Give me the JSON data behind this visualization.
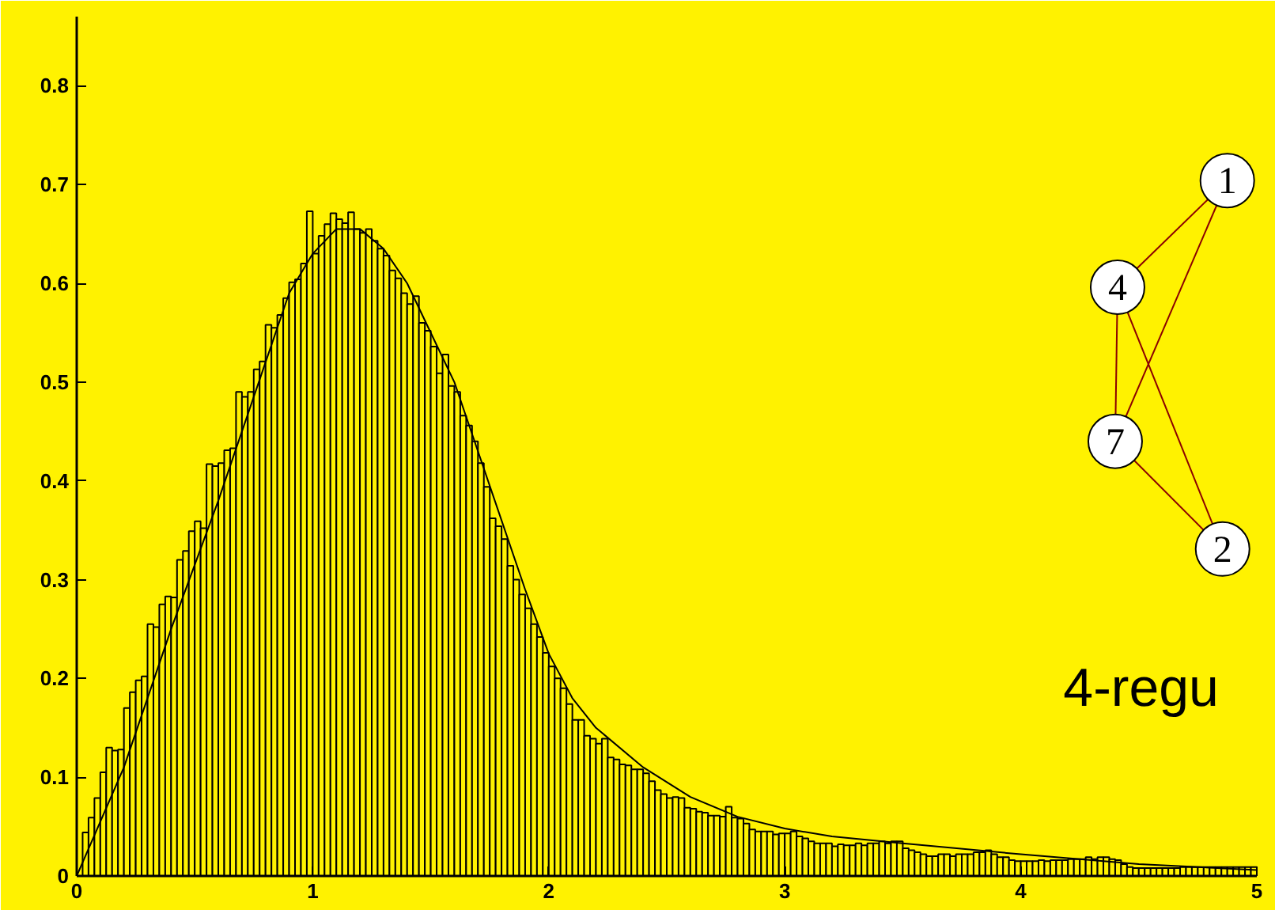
{
  "chart_data": {
    "type": "histogram",
    "bins": [
      0,
      0.025,
      0.05,
      0.075,
      0.1,
      0.125,
      0.15,
      0.175,
      0.2,
      0.225,
      0.25,
      0.275,
      0.3,
      0.325,
      0.35,
      0.375,
      0.4,
      0.425,
      0.45,
      0.475,
      0.5,
      0.525,
      0.55,
      0.575,
      0.6,
      0.625,
      0.65,
      0.675,
      0.7,
      0.725,
      0.75,
      0.775,
      0.8,
      0.825,
      0.85,
      0.875,
      0.9,
      0.925,
      0.95,
      0.975,
      1,
      1.025,
      1.05,
      1.075,
      1.1,
      1.125,
      1.15,
      1.175,
      1.2,
      1.225,
      1.25,
      1.275,
      1.3,
      1.325,
      1.35,
      1.375,
      1.4,
      1.425,
      1.45,
      1.475,
      1.5,
      1.525,
      1.55,
      1.575,
      1.6,
      1.625,
      1.65,
      1.675,
      1.7,
      1.725,
      1.75,
      1.775,
      1.8,
      1.825,
      1.85,
      1.875,
      1.9,
      1.925,
      1.95,
      1.975,
      2,
      2.025,
      2.05,
      2.075,
      2.1,
      2.125,
      2.15,
      2.175,
      2.2,
      2.225,
      2.25,
      2.275,
      2.3,
      2.325,
      2.35,
      2.375,
      2.4,
      2.425,
      2.45,
      2.475,
      2.5,
      2.525,
      2.55,
      2.575,
      2.6,
      2.625,
      2.65,
      2.675,
      2.7,
      2.725,
      2.75,
      2.775,
      2.8,
      2.825,
      2.85,
      2.875,
      2.9,
      2.925,
      2.95,
      2.975,
      3,
      3.025,
      3.05,
      3.075,
      3.1,
      3.125,
      3.15,
      3.175,
      3.2,
      3.225,
      3.25,
      3.275,
      3.3,
      3.325,
      3.35,
      3.375,
      3.4,
      3.425,
      3.45,
      3.475,
      3.5,
      3.525,
      3.55,
      3.575,
      3.6,
      3.625,
      3.65,
      3.675,
      3.7,
      3.725,
      3.75,
      3.775,
      3.8,
      3.825,
      3.85,
      3.875,
      3.9,
      3.925,
      3.95,
      3.975,
      4,
      4.025,
      4.05,
      4.075,
      4.1,
      4.125,
      4.15,
      4.175,
      4.2,
      4.225,
      4.25,
      4.275,
      4.3,
      4.325,
      4.35,
      4.375,
      4.4,
      4.425,
      4.45,
      4.475,
      4.5,
      4.525,
      4.55,
      4.575,
      4.6,
      4.625,
      4.65,
      4.675,
      4.7,
      4.725,
      4.75,
      4.775,
      4.8,
      4.825,
      4.85,
      4.875,
      4.9,
      4.925,
      4.95,
      4.975,
      5
    ],
    "values": [
      null,
      0.044,
      0.059,
      0.079,
      0.105,
      0.13,
      0.127,
      0.128,
      0.17,
      0.186,
      0.198,
      0.202,
      0.255,
      0.252,
      0.275,
      0.283,
      0.282,
      0.32,
      0.329,
      0.349,
      0.359,
      0.352,
      0.417,
      0.415,
      0.418,
      0.431,
      0.433,
      0.49,
      0.485,
      0.49,
      0.513,
      0.521,
      0.558,
      0.555,
      0.568,
      0.585,
      0.601,
      0.604,
      0.62,
      0.673,
      0.63,
      0.648,
      0.66,
      0.671,
      0.665,
      0.661,
      0.672,
      0.655,
      0.651,
      0.655,
      0.643,
      0.635,
      0.628,
      0.613,
      0.605,
      0.59,
      0.579,
      0.587,
      0.56,
      0.552,
      0.536,
      0.509,
      0.528,
      0.496,
      0.49,
      0.466,
      0.456,
      0.44,
      0.418,
      0.394,
      0.362,
      0.354,
      0.341,
      0.314,
      0.3,
      0.285,
      0.271,
      0.255,
      0.242,
      0.226,
      0.212,
      0.2,
      0.19,
      0.174,
      0.158,
      0.158,
      0.142,
      0.139,
      0.134,
      0.139,
      0.12,
      0.118,
      0.113,
      0.112,
      0.108,
      0.108,
      0.104,
      0.096,
      0.087,
      0.083,
      0.079,
      0.08,
      0.079,
      0.069,
      0.068,
      0.065,
      0.064,
      0.061,
      0.061,
      0.06,
      0.07,
      0.059,
      0.058,
      0.053,
      0.047,
      0.045,
      0.045,
      0.045,
      0.042,
      0.043,
      0.043,
      0.045,
      0.04,
      0.038,
      0.035,
      0.033,
      0.033,
      0.033,
      0.03,
      0.032,
      0.031,
      0.031,
      0.033,
      0.031,
      0.033,
      0.033,
      0.035,
      0.033,
      0.035,
      0.035,
      0.028,
      0.026,
      0.024,
      0.022,
      0.02,
      0.02,
      0.022,
      0.022,
      0.02,
      0.022,
      0.022,
      0.022,
      0.024,
      0.024,
      0.026,
      0.022,
      0.019,
      0.019,
      0.016,
      0.015,
      0.015,
      0.015,
      0.015,
      0.016,
      0.015,
      0.016,
      0.016,
      0.016,
      0.017,
      0.017,
      0.017,
      0.019,
      0.017,
      0.019,
      0.019,
      0.017,
      0.016,
      0.012,
      0.009,
      0.008,
      0.008,
      0.008,
      0.008,
      0.008,
      0.008,
      0.008,
      0.008,
      0.009,
      0.009,
      0.009,
      0.009,
      0.009,
      0.009,
      0.009,
      0.009,
      0.009,
      0.009,
      0.009,
      0.009,
      0.009
    ],
    "color": "#fff200",
    "series": [
      {
        "type": "line",
        "color": "#000000",
        "x": [
          0,
          0.2,
          0.4,
          0.6,
          0.8,
          0.9,
          1.0,
          1.1,
          1.2,
          1.3,
          1.4,
          1.5,
          1.6,
          1.7,
          1.8,
          1.9,
          2.0,
          2.1,
          2.2,
          2.4,
          2.6,
          2.8,
          3.0,
          3.2,
          3.5,
          4.0,
          4.5,
          5.0
        ],
        "values": [
          0,
          0.11,
          0.25,
          0.38,
          0.52,
          0.59,
          0.63,
          0.655,
          0.655,
          0.635,
          0.6,
          0.55,
          0.5,
          0.43,
          0.36,
          0.29,
          0.225,
          0.18,
          0.15,
          0.11,
          0.08,
          0.06,
          0.048,
          0.04,
          0.033,
          0.022,
          0.012,
          0.006
        ]
      }
    ],
    "xlim": [
      0,
      5
    ],
    "ylim": [
      0,
      0.87
    ],
    "xticks": [
      0,
      1,
      2,
      3,
      4,
      5
    ],
    "yticks": [
      0,
      0.1,
      0.2,
      0.3,
      0.4,
      0.5,
      0.6,
      0.7,
      0.8
    ],
    "grid": false,
    "annotations": [
      "1",
      "4",
      "7",
      "2",
      "4-regu"
    ]
  }
}
